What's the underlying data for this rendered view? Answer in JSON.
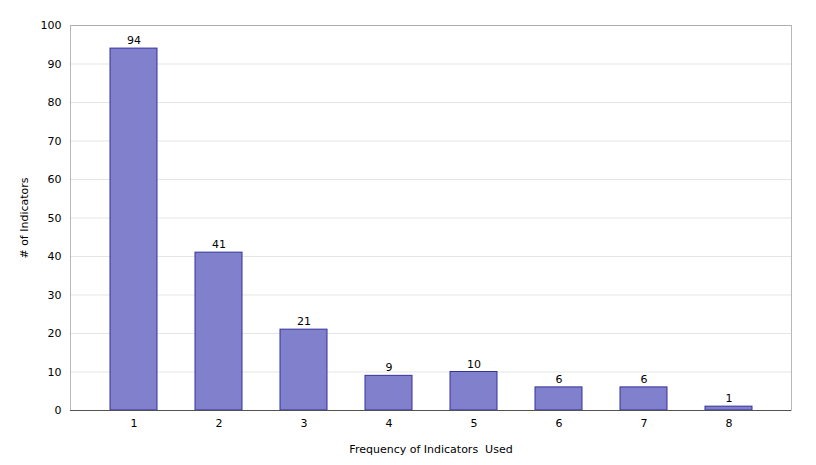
{
  "chart_data": {
    "type": "bar",
    "categories": [
      1,
      2,
      3,
      4,
      5,
      6,
      7,
      8
    ],
    "values": [
      94,
      41,
      21,
      9,
      10,
      6,
      6,
      1
    ],
    "color": "#8080cc",
    "xlabel": "Frequency of Indicators  Used",
    "ylabel": "# of Indicators",
    "ylim": [
      0,
      100
    ],
    "yticks": [
      0,
      10,
      20,
      30,
      40,
      50,
      60,
      70,
      80,
      90,
      100
    ],
    "grid": true,
    "data_labels": true
  }
}
